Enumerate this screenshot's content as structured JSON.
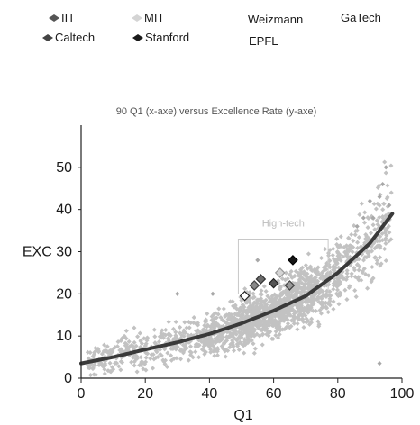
{
  "chart_data": {
    "type": "scatter",
    "title": "90 Q1 (x-axe) versus Excellence Rate (y-axe)",
    "xlabel": "Q1",
    "ylabel": "EXC",
    "xlim": [
      0,
      100
    ],
    "ylim": [
      0,
      60
    ],
    "xticks": [
      "0",
      "20",
      "40",
      "60",
      "80",
      "100"
    ],
    "yticks": [
      "0",
      "10",
      "20",
      "EXC 30",
      "40",
      "50"
    ],
    "grid": false,
    "legend_position": "top",
    "legend": [
      {
        "name": "IIT",
        "marker": "diamond",
        "color": "#555555"
      },
      {
        "name": "MIT",
        "marker": "diamond",
        "color": "#d4d4d4"
      },
      {
        "name": "Weizmann",
        "marker": "none",
        "color": "#333333"
      },
      {
        "name": "GaTech",
        "marker": "none",
        "color": "#333333"
      },
      {
        "name": "Caltech",
        "marker": "diamond",
        "color": "#444444"
      },
      {
        "name": "Stanford",
        "marker": "diamond",
        "color": "#1a1a1a"
      },
      {
        "name": "EPFL",
        "marker": "none",
        "color": "#333333"
      }
    ],
    "colors": {
      "cloud": "#c2c2c2",
      "trend": "#3a3a3a"
    },
    "series": [
      {
        "name": "IIT",
        "x": [
          56
        ],
        "y": [
          23.5
        ]
      },
      {
        "name": "MIT",
        "x": [
          62
        ],
        "y": [
          25
        ]
      },
      {
        "name": "Caltech",
        "x": [
          60
        ],
        "y": [
          22.5
        ]
      },
      {
        "name": "Stanford",
        "x": [
          66
        ],
        "y": [
          28
        ]
      },
      {
        "name": "Weizmann",
        "x": [
          51
        ],
        "y": [
          19.5
        ]
      },
      {
        "name": "EPFL",
        "x": [
          65
        ],
        "y": [
          22
        ]
      },
      {
        "name": "GaTech",
        "x": [
          54
        ],
        "y": [
          22
        ]
      }
    ],
    "trend": {
      "type": "exponential",
      "x": [
        0,
        10,
        20,
        30,
        40,
        50,
        60,
        70,
        80,
        90,
        97
      ],
      "y": [
        3.5,
        5.0,
        6.8,
        8.5,
        10.5,
        13.0,
        16.0,
        19.5,
        25.0,
        32.0,
        39.0
      ]
    },
    "annotation": {
      "text": "High-tech",
      "box": {
        "x0": 49,
        "x1": 77,
        "y0": 20,
        "y1": 33
      }
    },
    "background_cloud": {
      "count": 1800,
      "x_range": [
        2,
        97
      ],
      "note": ""
    }
  }
}
